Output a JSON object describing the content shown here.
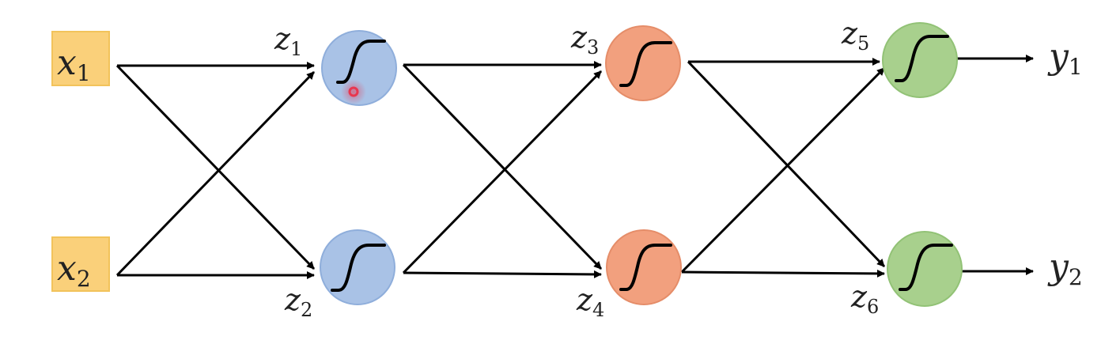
{
  "diagram": {
    "type": "neural-network",
    "inputs": [
      {
        "var": "x",
        "sub": "1"
      },
      {
        "var": "x",
        "sub": "2"
      }
    ],
    "neurons": [
      {
        "var": "z",
        "sub": "1",
        "layer": "hidden-1"
      },
      {
        "var": "z",
        "sub": "2",
        "layer": "hidden-1"
      },
      {
        "var": "z",
        "sub": "3",
        "layer": "hidden-2"
      },
      {
        "var": "z",
        "sub": "4",
        "layer": "hidden-2"
      },
      {
        "var": "z",
        "sub": "5",
        "layer": "output"
      },
      {
        "var": "z",
        "sub": "6",
        "layer": "output"
      }
    ],
    "outputs": [
      {
        "var": "y",
        "sub": "1"
      },
      {
        "var": "y",
        "sub": "2"
      }
    ],
    "activation_icon": "sigmoid-curve-icon"
  },
  "colors": {
    "input_fill": "#FAD07A",
    "input_stroke": "#F2C35B",
    "layer1_fill": "#A9C2E6",
    "layer1_stroke": "#8FAEDB",
    "layer2_fill": "#F2A07E",
    "layer2_stroke": "#E58D69",
    "layer3_fill": "#A8D08D",
    "layer3_stroke": "#92C276",
    "arrow": "#000000",
    "cursor": "#E8364F"
  }
}
